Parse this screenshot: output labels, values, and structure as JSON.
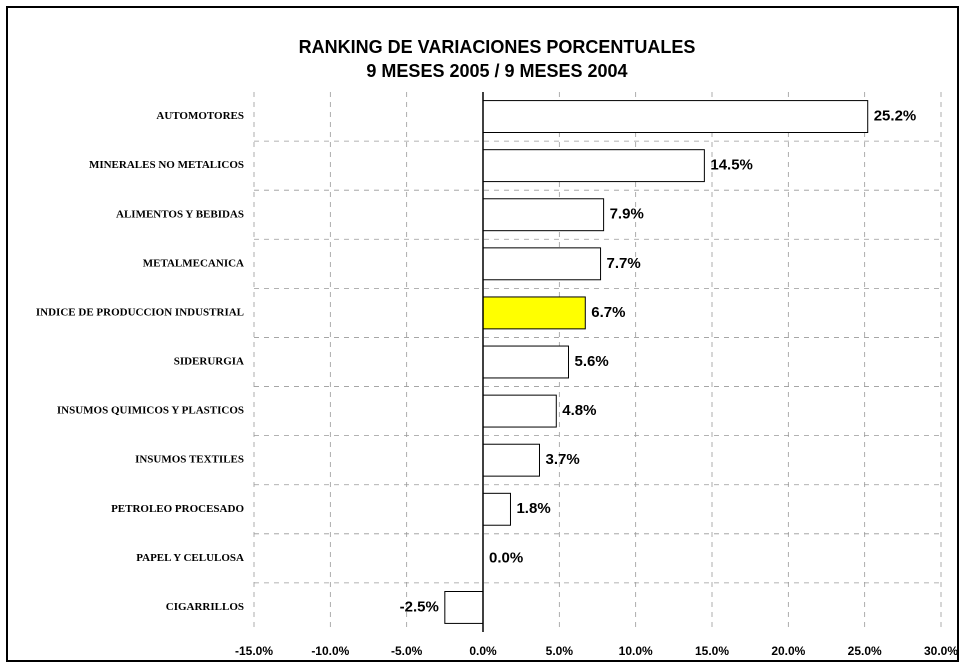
{
  "chart_data": {
    "type": "bar",
    "orientation": "horizontal",
    "title": "RANKING DE VARIACIONES PORCENTUALES",
    "subtitle": "9 MESES 2005 / 9 MESES 2004",
    "categories": [
      "AUTOMOTORES",
      "MINERALES NO METALICOS",
      "ALIMENTOS Y BEBIDAS",
      "METALMECANICA",
      "INDICE DE PRODUCCION INDUSTRIAL",
      "SIDERURGIA",
      "INSUMOS QUIMICOS Y PLASTICOS",
      "INSUMOS TEXTILES",
      "PETROLEO PROCESADO",
      "PAPEL Y CELULOSA",
      "CIGARRILLOS"
    ],
    "values": [
      25.2,
      14.5,
      7.9,
      7.7,
      6.7,
      5.6,
      4.8,
      3.7,
      1.8,
      0.0,
      -2.5
    ],
    "value_labels": [
      "25.2%",
      "14.5%",
      "7.9%",
      "7.7%",
      "6.7%",
      "5.6%",
      "4.8%",
      "3.7%",
      "1.8%",
      "0.0%",
      "-2.5%"
    ],
    "colors": [
      "#ffffff",
      "#ffffff",
      "#ffffff",
      "#ffffff",
      "#ffff00",
      "#ffffff",
      "#ffffff",
      "#ffffff",
      "#ffffff",
      "#ffffff",
      "#ffffff"
    ],
    "xlim": [
      -15,
      30
    ],
    "xticks": [
      {
        "value": -15,
        "label": "-15.0%"
      },
      {
        "value": -10,
        "label": "-10.0%"
      },
      {
        "value": -5,
        "label": "-5.0%"
      },
      {
        "value": 0,
        "label": "0.0%"
      },
      {
        "value": 5,
        "label": "5.0%"
      },
      {
        "value": 10,
        "label": "10.0%"
      },
      {
        "value": 15,
        "label": "15.0%"
      },
      {
        "value": 20,
        "label": "20.0%"
      },
      {
        "value": 25,
        "label": "25.0%"
      },
      {
        "value": 30,
        "label": "30.0%"
      }
    ],
    "grid": true
  }
}
